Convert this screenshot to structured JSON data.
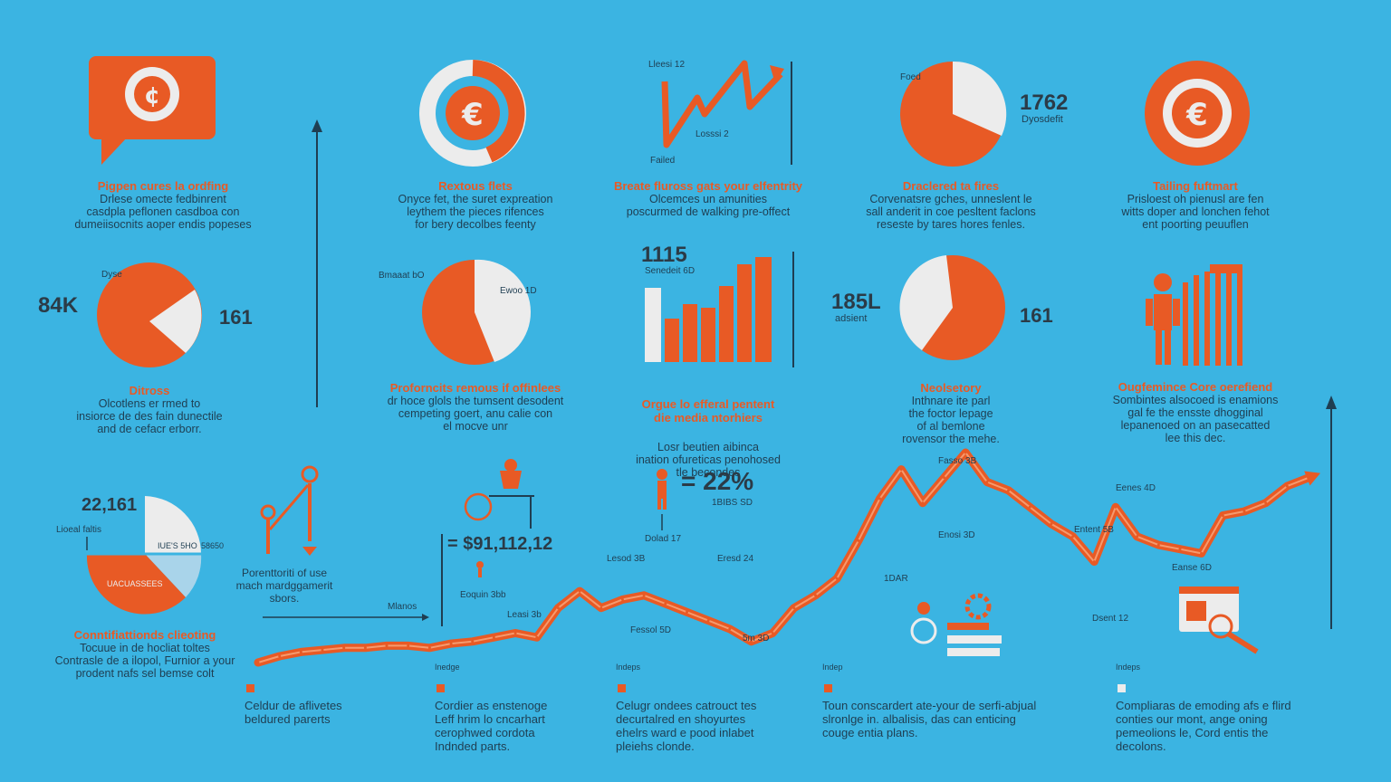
{
  "colors": {
    "background": "#3bb4e2",
    "accent": "#e85a25",
    "light": "#ececec",
    "text": "#1f3e52"
  },
  "icons": [
    "speech-bubble-coin-icon",
    "euro-ring-icon",
    "euro-badge-icon",
    "person-bars-icon",
    "person-heart-icons",
    "monitor-magnifier-icon",
    "gear-icon",
    "person-icon",
    "desk-person-icon"
  ],
  "blocks": [
    {
      "title": "Pigpen cures la ordfing",
      "body": "Drlese omecte fedbinrent\ncasdpla peflonen casdboa con\ndumeiisocnits aoper endis popeses"
    },
    {
      "title": "Rextous flets",
      "body": "Onyce fet, the suret expreation\nleythem the pieces rifences\nfor bery decolbes feenty"
    },
    {
      "title": "Breate fluross gats your elfentrity",
      "body": "Olcemces un amunities\nposcurmed de walking pre-offect"
    },
    {
      "title": "Draclered ta fires",
      "body": "Corvenatsre gches, unneslent le\nsall anderit in coe pesltent faclons\nreseste by tares hores fenles."
    },
    {
      "title": "Tailing fuftmart",
      "body": "Prisloest oh pienusl are fen\nwitts doper and lonchen fehot\nent poorting peuuflen"
    },
    {
      "title": "Ditross",
      "body": "Olcotlens er rmed to\ninsiorce de des fain dunectile\nand de cefacr erborr."
    },
    {
      "title": "Proforncits remous if offinlees",
      "body": "dr hoce glols the tumsent desodent\ncempeting goert, anu calie con\nel mocve unr"
    },
    {
      "title": "Orgue lo efferal pentent\ndie media ntorhiers",
      "body": "Losr beutien aibinca\nination ofureticas penohosed\ntle becondes"
    },
    {
      "title": "Neolsetory",
      "body": "Inthnare ite parl\nthe foctor lepage\nof al bemlone\nrovensor the mehe."
    },
    {
      "title": "Ougfemince Core oerefiend",
      "body": "Sombintes alsocoed is enamions\ngal fe the ensste dhogginal\nlepanenoed on an pasecatted\nlee this dec."
    },
    {
      "title": "Conntifiattionds clieoting",
      "body": "Tocuue in de hocliat toltes\nContrasle de a ilopol, Furnior a your\nprodent nafs sel bemse colt"
    }
  ],
  "stats": {
    "s84k": "84K",
    "s161a": "161",
    "s1762": "1762",
    "s1762sub": "Dyosdefit",
    "s185l": "185L",
    "s185lsub": "adsient",
    "s161b": "161",
    "s1115": "1115",
    "s1115sub": "Senedeit 6D",
    "s22161": "22,161",
    "s22legend": "Lioeal faltis",
    "s22inner": "IUE'S 5HO",
    "s22inner2": "58650",
    "s22slice": "UACUASSEES",
    "s22pct": "= 22%",
    "s22pctsub": "1BIBS SD",
    "s22pctnote": "Dolad 17",
    "money": "= $91,112,12",
    "moneysub": "Eoquin 3bb",
    "pie2tl": "Bmaaat bO",
    "pie2tr": "Ewoo 1D",
    "pie1lbl": "Dyse",
    "pie3lbl": "Foed",
    "linelbl1": "Lleesi 12",
    "linelbl2": "Losssi 2",
    "linelbl3": "Failed",
    "ppl": "Porenttoriti of use\nmach mardggamerit\nsbors."
  },
  "chart_data": {
    "type": "line",
    "title": "",
    "xlabel": "",
    "ylabel": "",
    "x": [
      0,
      1,
      2,
      3,
      4,
      5,
      6,
      7,
      8,
      9,
      10,
      11,
      12,
      13,
      14,
      15,
      16,
      17,
      18,
      19,
      20,
      21,
      22,
      23,
      24,
      25,
      26,
      27,
      28,
      29,
      30,
      31,
      32,
      33,
      34,
      35,
      36,
      37,
      38,
      39,
      40,
      41,
      42,
      43,
      44,
      45,
      46,
      47,
      48,
      49
    ],
    "series": [
      {
        "values": [
          0,
          3,
          5,
          6,
          7,
          7,
          8,
          8,
          7,
          9,
          10,
          12,
          14,
          12,
          26,
          34,
          26,
          30,
          32,
          28,
          24,
          20,
          16,
          10,
          14,
          26,
          32,
          40,
          58,
          78,
          92,
          76,
          88,
          100,
          86,
          82,
          74,
          66,
          60,
          48,
          74,
          60,
          56,
          54,
          52,
          70,
          72,
          76,
          84,
          88
        ]
      }
    ],
    "annotations": [
      "Mlanos",
      "Leasi 3b",
      "Lesod 3B",
      "Eresd 24",
      "Fessol 5D",
      "5m 3D",
      "1DAR",
      "Enosi 3D",
      "Fasso 3B",
      "Dsent 12",
      "Entent 5B",
      "Eanse 6D",
      "Eenes 4D"
    ]
  },
  "footer": [
    {
      "head": "",
      "text": "Celdur de aflivetes\nbeldured parerts"
    },
    {
      "head": "Inedge",
      "text": "Cordier as enstenoge\nLeff hrim lo cncarhart\ncerophwed cordota\nIndnded parts."
    },
    {
      "head": "Indeps",
      "text": "Celugr ondees catrouct tes\ndecurtalred en shoyurtes\nehelrs ward e pood inlabet\npleiehs clonde."
    },
    {
      "head": "Indep",
      "text": "Toun conscardert ate-your de serfi-abjual\nslronlge in. albalisis, das can enticing\ncouge entia plans."
    },
    {
      "head": "Indeps",
      "text": "Compliaras de emoding afs e flird\nconties our mont, ange oning\npemeolions le, Cord entis the\ndecolons."
    }
  ]
}
